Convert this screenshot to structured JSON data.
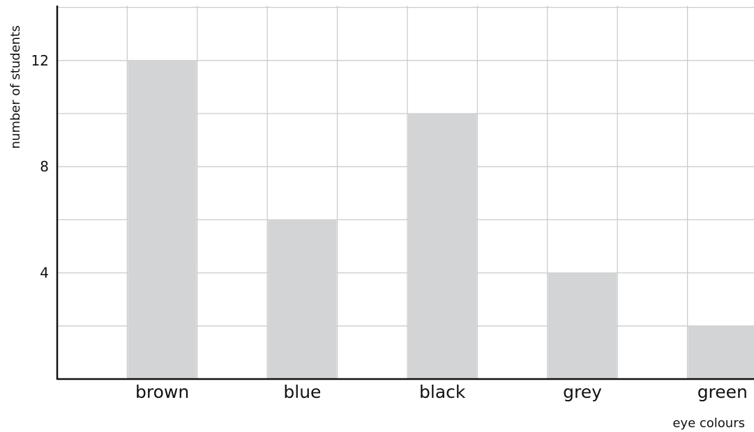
{
  "chart_data": {
    "type": "bar",
    "categories": [
      "brown",
      "blue",
      "black",
      "grey",
      "green"
    ],
    "values": [
      12,
      6,
      10,
      4,
      2
    ],
    "xlabel": "eye colours",
    "ylabel": "number of students",
    "ylim": [
      0,
      14
    ],
    "yticks": [
      4,
      8,
      12
    ],
    "grid": true,
    "bar_color": "#d3d4d5",
    "grid_color": "#cccccc",
    "axis_color": "#111111"
  }
}
